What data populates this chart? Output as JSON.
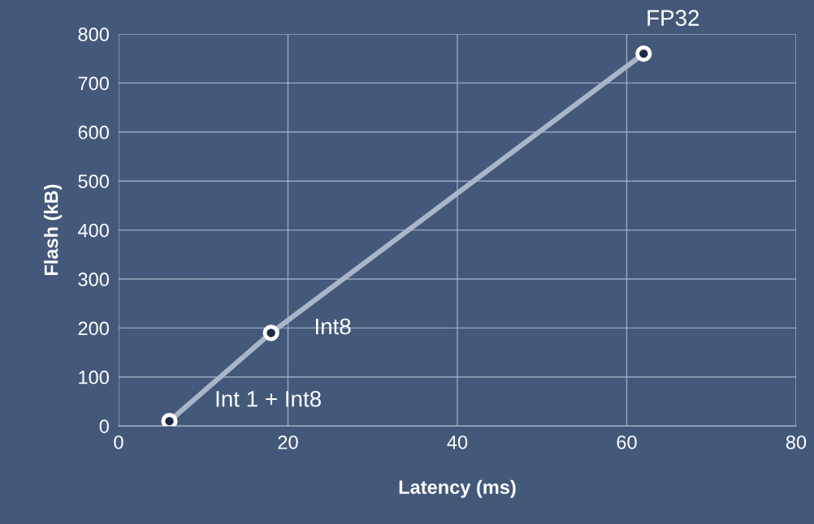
{
  "chart_data": {
    "type": "line",
    "xlabel": "Latency (ms)",
    "ylabel": "Flash (kB)",
    "x": [
      6,
      18,
      62
    ],
    "series": [
      {
        "color": "#a9b5c9",
        "values": [
          10,
          190,
          760
        ]
      }
    ],
    "xlim": [
      0,
      80
    ],
    "xticks": [
      0,
      20,
      40,
      60,
      80
    ],
    "ylim": [
      0,
      800
    ],
    "yticks": [
      0,
      100,
      200,
      300,
      400,
      500,
      600,
      700,
      800
    ],
    "grid": true,
    "marker": "circle",
    "line_style": "solid",
    "annotations": [
      {
        "text": "Int 1 + Int8",
        "x": 6,
        "y": 10
      },
      {
        "text": "Int8",
        "x": 18,
        "y": 190
      },
      {
        "text": "FP32",
        "x": 62,
        "y": 760
      }
    ]
  }
}
